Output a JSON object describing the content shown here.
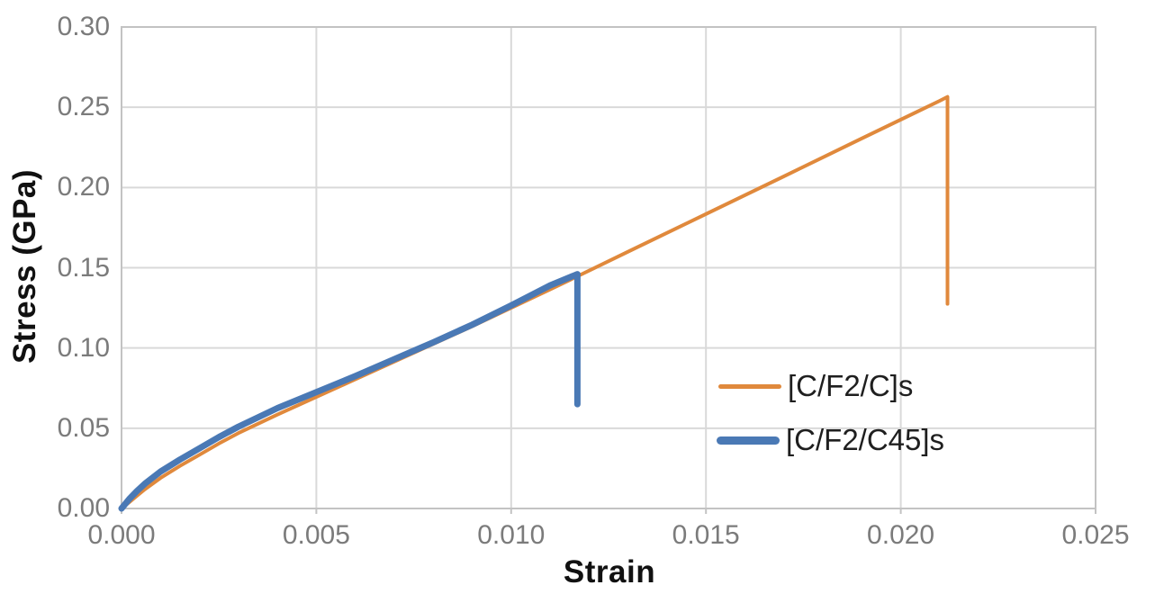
{
  "chart_data": {
    "type": "line",
    "title": "",
    "xlabel": "Strain",
    "ylabel": "Stress (GPa)",
    "xlim": [
      0,
      0.025
    ],
    "ylim": [
      0,
      0.3
    ],
    "x_ticks": [
      0,
      0.005,
      0.01,
      0.015,
      0.02,
      0.025
    ],
    "x_tick_labels": [
      "0.000",
      "0.005",
      "0.010",
      "0.015",
      "0.020",
      "0.025"
    ],
    "y_ticks": [
      0,
      0.05,
      0.1,
      0.15,
      0.2,
      0.25,
      0.3
    ],
    "y_tick_labels": [
      "0.00",
      "0.05",
      "0.10",
      "0.15",
      "0.20",
      "0.25",
      "0.30"
    ],
    "grid": true,
    "legend_position": "inside-right",
    "series": [
      {
        "name": "[C/F2/C]s",
        "color": "#E0893C",
        "stroke_width": 4,
        "peak": {
          "strain": 0.0212,
          "stress": 0.256
        },
        "drop_to_stress": 0.127,
        "points": [
          [
            0,
            0
          ],
          [
            0.0002,
            0.004
          ],
          [
            0.0004,
            0.008
          ],
          [
            0.0006,
            0.012
          ],
          [
            0.001,
            0.019
          ],
          [
            0.0015,
            0.0265
          ],
          [
            0.002,
            0.0335
          ],
          [
            0.0025,
            0.0405
          ],
          [
            0.003,
            0.047
          ],
          [
            0.004,
            0.0585
          ],
          [
            0.005,
            0.0695
          ],
          [
            0.006,
            0.0805
          ],
          [
            0.007,
            0.0915
          ],
          [
            0.008,
            0.1025
          ],
          [
            0.009,
            0.1135
          ],
          [
            0.01,
            0.125
          ],
          [
            0.011,
            0.1365
          ],
          [
            0.0117,
            0.1447
          ],
          [
            0.013,
            0.16
          ],
          [
            0.015,
            0.1835
          ],
          [
            0.017,
            0.207
          ],
          [
            0.019,
            0.2306
          ],
          [
            0.021,
            0.254
          ],
          [
            0.0212,
            0.2565
          ],
          [
            0.0212,
            0.1275
          ]
        ]
      },
      {
        "name": "[C/F2/C45]s",
        "color": "#4A79B5",
        "stroke_width": 7,
        "peak": {
          "strain": 0.0117,
          "stress": 0.146
        },
        "drop_to_stress": 0.065,
        "points": [
          [
            0,
            0
          ],
          [
            0.0002,
            0.006
          ],
          [
            0.0004,
            0.011
          ],
          [
            0.0006,
            0.0155
          ],
          [
            0.001,
            0.023
          ],
          [
            0.0015,
            0.0305
          ],
          [
            0.002,
            0.0375
          ],
          [
            0.0025,
            0.0445
          ],
          [
            0.003,
            0.051
          ],
          [
            0.004,
            0.0625
          ],
          [
            0.005,
            0.0725
          ],
          [
            0.006,
            0.0825
          ],
          [
            0.007,
            0.093
          ],
          [
            0.008,
            0.1035
          ],
          [
            0.009,
            0.1145
          ],
          [
            0.01,
            0.1265
          ],
          [
            0.011,
            0.139
          ],
          [
            0.0117,
            0.146
          ],
          [
            0.0117,
            0.065
          ]
        ]
      }
    ],
    "colors": {
      "gridline": "#D9D9D9",
      "plot_border": "#C3C3C3",
      "tick_label": "#7b7b7b",
      "axis_title": "#111111",
      "legend_text": "#1f1f1f",
      "background": "#ffffff"
    }
  }
}
